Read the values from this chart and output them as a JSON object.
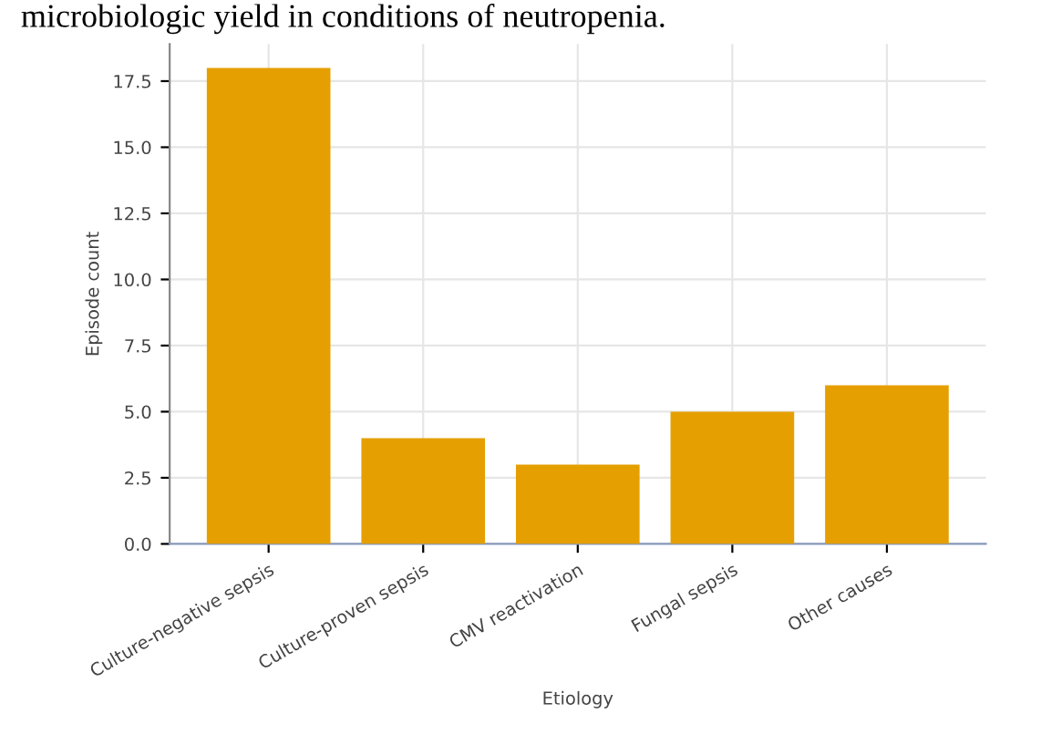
{
  "chart_data": {
    "type": "bar",
    "annotations": [
      "microbiologic yield in conditions of neutropenia."
    ],
    "xlabel": "Etiology",
    "ylabel": "Episode count",
    "categories": [
      "Culture-negative sepsis",
      "Culture-proven sepsis",
      "CMV reactivation",
      "Fungal sepsis",
      "Other causes"
    ],
    "values": [
      18,
      4,
      3,
      5,
      6
    ],
    "color": "#e69f00",
    "ylim": [
      0,
      18.9
    ],
    "yticks": [
      {
        "value": 0,
        "label": "0.0"
      },
      {
        "value": 2.5,
        "label": "2.5"
      },
      {
        "value": 5,
        "label": "5.0"
      },
      {
        "value": 7.5,
        "label": "7.5"
      },
      {
        "value": 10,
        "label": "10.0"
      },
      {
        "value": 12.5,
        "label": "12.5"
      },
      {
        "value": 15,
        "label": "15.0"
      },
      {
        "value": 17.5,
        "label": "17.5"
      }
    ],
    "grid": true
  }
}
